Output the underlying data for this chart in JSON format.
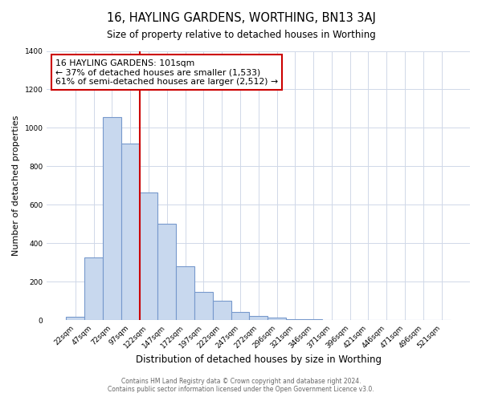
{
  "title": "16, HAYLING GARDENS, WORTHING, BN13 3AJ",
  "subtitle": "Size of property relative to detached houses in Worthing",
  "xlabel": "Distribution of detached houses by size in Worthing",
  "ylabel": "Number of detached properties",
  "bar_labels": [
    "22sqm",
    "47sqm",
    "72sqm",
    "97sqm",
    "122sqm",
    "147sqm",
    "172sqm",
    "197sqm",
    "222sqm",
    "247sqm",
    "272sqm",
    "296sqm",
    "321sqm",
    "346sqm",
    "371sqm",
    "396sqm",
    "421sqm",
    "446sqm",
    "471sqm",
    "496sqm",
    "521sqm"
  ],
  "bar_values": [
    18,
    328,
    1055,
    918,
    665,
    500,
    283,
    148,
    100,
    42,
    22,
    14,
    8,
    8,
    4,
    1,
    0,
    0,
    0,
    0,
    1
  ],
  "bar_color": "#c8d8ee",
  "bar_edge_color": "#7799cc",
  "vline_color": "#cc0000",
  "annotation_text": "16 HAYLING GARDENS: 101sqm\n← 37% of detached houses are smaller (1,533)\n61% of semi-detached houses are larger (2,512) →",
  "annotation_box_color": "#ffffff",
  "annotation_box_edge": "#cc0000",
  "ylim": [
    0,
    1400
  ],
  "yticks": [
    0,
    200,
    400,
    600,
    800,
    1000,
    1200,
    1400
  ],
  "footer1": "Contains HM Land Registry data © Crown copyright and database right 2024.",
  "footer2": "Contains public sector information licensed under the Open Government Licence v3.0.",
  "bg_color": "#ffffff",
  "plot_bg_color": "#ffffff",
  "grid_color": "#d0d8e8"
}
